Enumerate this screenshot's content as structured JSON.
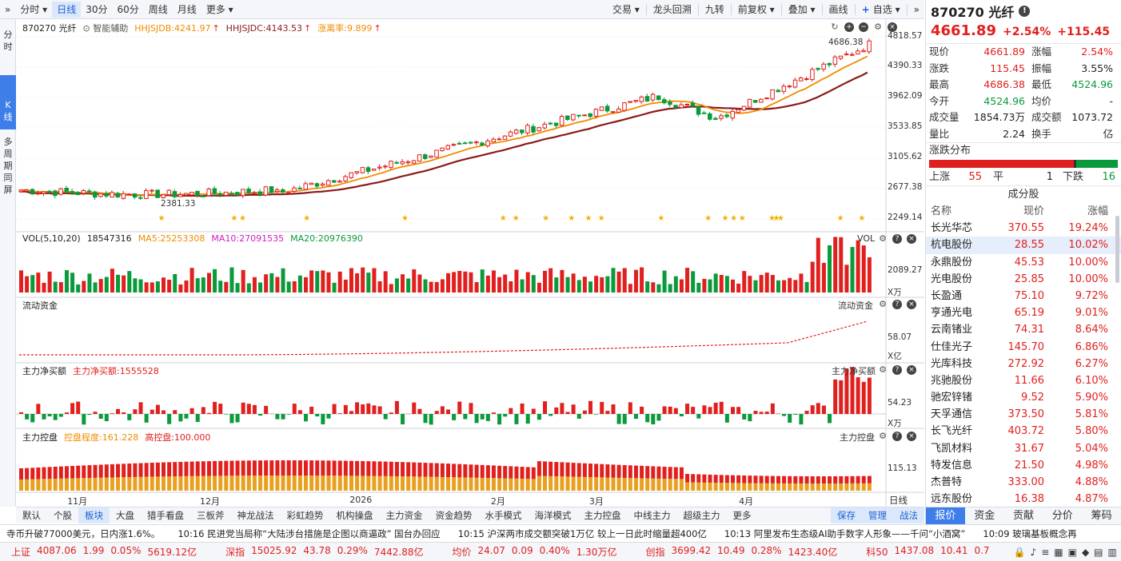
{
  "toolbar": {
    "left_items": [
      {
        "label": "分时",
        "dropdown": true,
        "active": false
      },
      {
        "label": "日线",
        "active": true
      },
      {
        "label": "30分",
        "active": false
      },
      {
        "label": "60分",
        "active": false
      },
      {
        "label": "周线",
        "active": false
      },
      {
        "label": "月线",
        "active": false
      },
      {
        "label": "更多",
        "dropdown": true,
        "active": false
      }
    ],
    "right_items": [
      {
        "label": "交易",
        "dropdown": true
      },
      {
        "label": "龙头回溯"
      },
      {
        "label": "九转"
      },
      {
        "label": "前复权",
        "dropdown": true
      },
      {
        "label": "叠加",
        "dropdown": true
      },
      {
        "label": "画线"
      },
      {
        "label": "自选",
        "dropdown": true
      }
    ]
  },
  "left_vtabs": [
    {
      "label": "分\n时",
      "active": false
    },
    {
      "label": "K\n线",
      "active": true
    },
    {
      "label": "多\n周\n期\n同\n屏",
      "active": false
    }
  ],
  "main_chart": {
    "code_name": "870270 光纤",
    "assist": "智能辅助",
    "ind1": "HHJSJDB:4241.97",
    "ind2": "HHJSJDC:4143.53",
    "ind3": "涨离率:9.899",
    "high_label": "4686.38",
    "low_label": "2381.33",
    "y_ticks": [
      "4818.57",
      "4390.33",
      "3962.09",
      "3533.85",
      "3105.62",
      "2677.38",
      "2249.14"
    ]
  },
  "vol_pane": {
    "title": "VOL(5,10,20)",
    "v": "18547316",
    "ma5": "MA5:25253308",
    "ma10": "MA10:27091535",
    "ma20": "MA20:20976390",
    "right_title": "VOL",
    "y_tick": "2089.27",
    "unit": "X万"
  },
  "flow_pane": {
    "title": "流动资金",
    "right_title": "流动资金",
    "y_tick": "58.07",
    "unit": "X亿"
  },
  "net_pane": {
    "title": "主力净买额",
    "value": "主力净买额:1555528",
    "right_title": "主力净买额",
    "y_tick": "54.23",
    "unit": "X万"
  },
  "ctrl_pane": {
    "title": "主力控盘",
    "v1": "控盘程度:161.228",
    "v2": "高控盘:100.000",
    "right_title": "主力控盘",
    "y_tick": "115.13"
  },
  "x_labels": [
    {
      "t": "11月",
      "pos": 0.06
    },
    {
      "t": "12月",
      "pos": 0.215
    },
    {
      "t": "2026",
      "pos": 0.39
    },
    {
      "t": "2月",
      "pos": 0.555
    },
    {
      "t": "3月",
      "pos": 0.67
    },
    {
      "t": "4月",
      "pos": 0.845
    }
  ],
  "period_label": "日线",
  "bottom_tabs": [
    "默认",
    "个股",
    "板块",
    "大盘",
    "猎手看盘",
    "三板斧",
    "神龙战法",
    "彩虹趋势",
    "机构操盘",
    "主力资金",
    "资金趋势",
    "水手模式",
    "海洋模式",
    "主力控盘",
    "中线主力",
    "超级主力",
    "更多"
  ],
  "bottom_tabs_right": [
    "保存",
    "管理",
    "战法"
  ],
  "quote": {
    "title": "870270 光纤",
    "price": "4661.89",
    "pct": "+2.54%",
    "chg": "+115.45",
    "rows": [
      {
        "k": "现价",
        "v": "4661.89",
        "vc": "red",
        "k2": "涨幅",
        "v2": "2.54%",
        "v2c": "red"
      },
      {
        "k": "涨跌",
        "v": "115.45",
        "vc": "red",
        "k2": "振幅",
        "v2": "3.55%",
        "v2c": ""
      },
      {
        "k": "最高",
        "v": "4686.38",
        "vc": "red",
        "k2": "最低",
        "v2": "4524.96",
        "v2c": "green"
      },
      {
        "k": "今开",
        "v": "4524.96",
        "vc": "green",
        "k2": "均价",
        "v2": "-",
        "v2c": ""
      },
      {
        "k": "成交量",
        "v": "1854.73万",
        "vc": "",
        "k2": "成交额",
        "v2": "1073.72亿",
        "v2c": ""
      },
      {
        "k": "量比",
        "v": "2.24",
        "vc": "",
        "k2": "换手",
        "v2": "-",
        "v2c": ""
      }
    ],
    "dist_title": "涨跌分布",
    "up_label": "上涨",
    "up": "55",
    "flat_label": "平",
    "flat": "1",
    "down_label": "下跌",
    "down": "16",
    "comp_title": "成分股",
    "comp_headers": [
      "名称",
      "现价",
      "涨幅"
    ],
    "components": [
      [
        "长光华芯",
        "370.55",
        "19.24%"
      ],
      [
        "杭电股份",
        "28.55",
        "10.02%"
      ],
      [
        "永鼎股份",
        "45.53",
        "10.00%"
      ],
      [
        "光电股份",
        "25.85",
        "10.00%"
      ],
      [
        "长盈通",
        "75.10",
        "9.72%"
      ],
      [
        "亨通光电",
        "65.19",
        "9.01%"
      ],
      [
        "云南锗业",
        "74.31",
        "8.64%"
      ],
      [
        "仕佳光子",
        "145.70",
        "6.86%"
      ],
      [
        "光库科技",
        "272.92",
        "6.27%"
      ],
      [
        "兆驰股份",
        "11.66",
        "6.10%"
      ],
      [
        "驰宏锌锗",
        "9.52",
        "5.90%"
      ],
      [
        "天孚通信",
        "373.50",
        "5.81%"
      ],
      [
        "长飞光纤",
        "403.72",
        "5.80%"
      ],
      [
        "飞凯材料",
        "31.67",
        "5.04%"
      ],
      [
        "特发信息",
        "21.50",
        "4.98%"
      ],
      [
        "杰普特",
        "333.00",
        "4.88%"
      ],
      [
        "远东股份",
        "16.38",
        "4.87%"
      ]
    ]
  },
  "right_tabs": [
    "报价",
    "资金",
    "贡献",
    "分价",
    "筹码"
  ],
  "news": [
    "寺币升破77000美元，日内涨1.6%。",
    "10:16 民进党当局称“大陆涉台措施是企图以商逼政”  国台办回应",
    "10:15 沪深两市成交额突破1万亿 较上一日此时缩量超400亿",
    "10:13 阿里发布生态级AI助手数字人形象——千问“小酒窝”",
    "10:09 玻璃基板概念再"
  ],
  "indices": [
    {
      "name": "上证",
      "val": "4087.06",
      "chg": "1.99",
      "pct": "0.05%",
      "amt": "5619.12亿"
    },
    {
      "name": "深指",
      "val": "15025.92",
      "chg": "43.78",
      "pct": "0.29%",
      "amt": "7442.88亿"
    },
    {
      "name": "均价",
      "val": "24.07",
      "chg": "0.09",
      "pct": "0.40%",
      "amt": "1.30万亿"
    },
    {
      "name": "创指",
      "val": "3699.42",
      "chg": "10.49",
      "pct": "0.28%",
      "amt": "1423.40亿"
    },
    {
      "name": "科50",
      "val": "1437.08",
      "chg": "10.41",
      "pct": "0.7",
      "amt": ""
    }
  ],
  "colors": {
    "up": "#e0201e",
    "down": "#0a9a3b",
    "accent": "#3e7ee8",
    "ma_orange": "#f08c00",
    "ma_dark": "#8b1a1a"
  }
}
